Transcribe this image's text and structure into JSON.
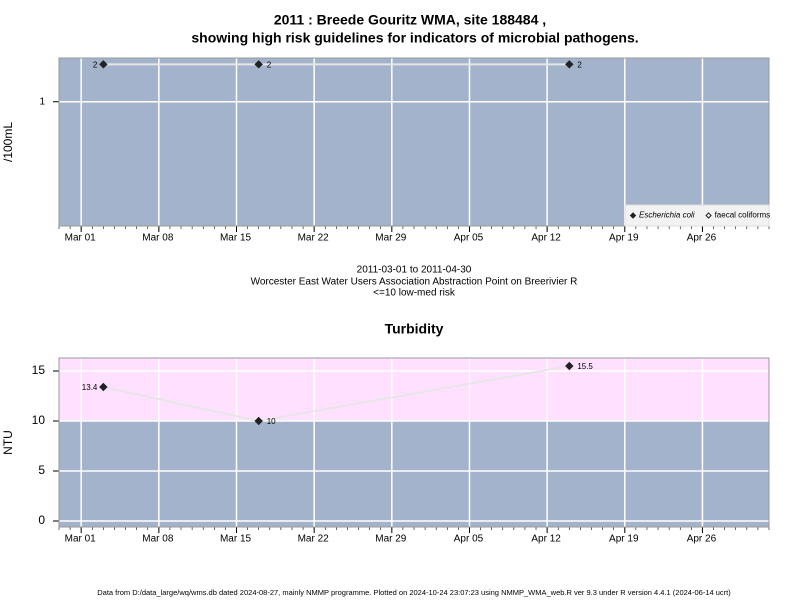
{
  "chart_data": [
    {
      "type": "line",
      "title": "2011 : Breede Gouritz WMA, site 188484 ,",
      "subtitle": "showing high risk guidelines for indicators of microbial pathogens.",
      "ylabel": "/100mL",
      "ylog": true,
      "x": [
        "Mar 03",
        "Mar 17",
        "Apr 14"
      ],
      "series": [
        {
          "name": "Escherichia coli",
          "color": "#222222",
          "marker": "filled-diamond",
          "values": [
            2,
            2,
            2
          ]
        },
        {
          "name": "faecal coliforms",
          "color": "#222222",
          "marker": "open-diamond",
          "values": [
            null,
            null,
            null
          ]
        }
      ],
      "xlim": [
        "Feb 27",
        "May 02"
      ],
      "xticks": [
        "Mar 01",
        "Mar 08",
        "Mar 15",
        "Mar 22",
        "Mar 29",
        "Apr 05",
        "Apr 12",
        "Apr 19",
        "Apr 26"
      ],
      "ylim": [
        0.1,
        2.25
      ],
      "yticks": [
        1
      ],
      "grid": true,
      "legend": "bottom-right",
      "background": "#a3b3cc",
      "annotations": [
        "2011-03-01 to 2011-04-30",
        "Worcester East Water Users Association Abstraction Point on Breerivier R",
        "<=10 low-med risk"
      ]
    },
    {
      "type": "line",
      "title": "Turbidity",
      "ylabel": "NTU",
      "x": [
        "Mar 03",
        "Mar 17",
        "Apr 14"
      ],
      "series": [
        {
          "color": "#222222",
          "marker": "filled-diamond",
          "values": [
            13.4,
            10,
            15.5
          ]
        }
      ],
      "xlim": [
        "Feb 27",
        "May 02"
      ],
      "xticks": [
        "Mar 01",
        "Mar 08",
        "Mar 15",
        "Mar 22",
        "Mar 29",
        "Apr 05",
        "Apr 12",
        "Apr 19",
        "Apr 26"
      ],
      "ylim": [
        -0.6,
        16.3
      ],
      "yticks": [
        0,
        5,
        10,
        15
      ],
      "grid": true,
      "background": "#a3b3cc",
      "bands": [
        {
          "from": 10,
          "to": 16.3,
          "color": "#ffe0ff"
        }
      ]
    }
  ],
  "footer": "Data from D:/data_large/wq/wms.db dated 2024-08-27, mainly NMMP programme. Plotted on 2024-10-24 23:07:23 using NMMP_WMA_web.R ver 9.3 under R version 4.4.1 (2024-06-14 ucrt)"
}
